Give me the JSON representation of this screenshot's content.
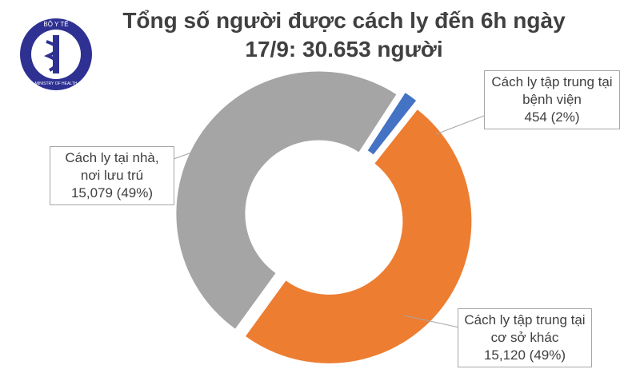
{
  "logo": {
    "top": "BỘ Y TẾ",
    "bottom": "MINISTRY OF HEALTH"
  },
  "chart_data": {
    "type": "donut",
    "title": "Tổng số người được cách ly đến 6h ngày 17/9: 30.653 người",
    "categories": [
      "Cách ly tập trung tại bệnh viện",
      "Cách ly tập trung tại cơ sở khác",
      "Cách ly tại nhà, nơi lưu trú"
    ],
    "values": [
      454,
      15120,
      15079
    ],
    "value_labels": [
      "454 (2%)",
      "15,120 (49%)",
      "15,079 (49%)"
    ],
    "colors": [
      "#4472c4",
      "#ed7d31",
      "#a5a5a5"
    ]
  }
}
